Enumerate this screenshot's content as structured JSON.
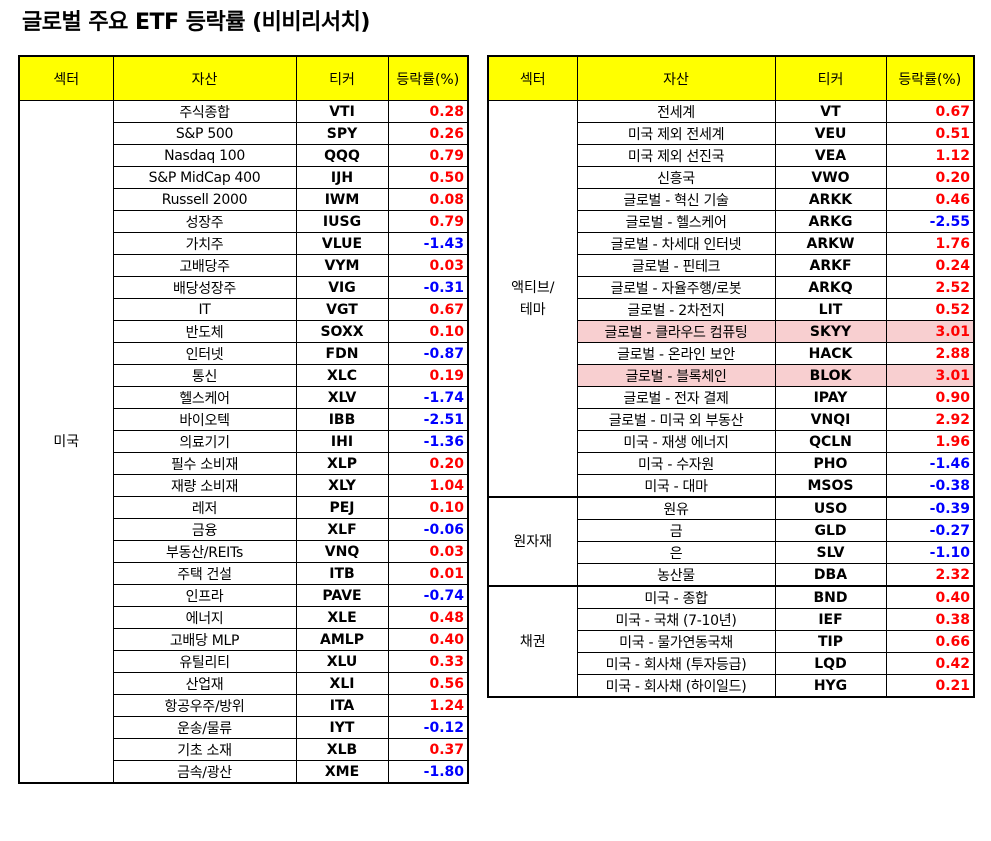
{
  "title": "글로벌 주요 ETF 등락률 (비비리서치)",
  "colors": {
    "header": "#ffff00",
    "positive": "#ff0000",
    "negative": "#0000ff",
    "highlight": "#f8cfd0"
  },
  "headers": {
    "sector": "섹터",
    "asset": "자산",
    "ticker": "티커",
    "change": "등락률(%)"
  },
  "left_table": {
    "groups": [
      {
        "sector": "미국",
        "rows": [
          {
            "asset": "주식종합",
            "ticker": "VTI",
            "change": "0.28"
          },
          {
            "asset": "S&P 500",
            "ticker": "SPY",
            "change": "0.26"
          },
          {
            "asset": "Nasdaq 100",
            "ticker": "QQQ",
            "change": "0.79"
          },
          {
            "asset": "S&P MidCap 400",
            "ticker": "IJH",
            "change": "0.50"
          },
          {
            "asset": "Russell 2000",
            "ticker": "IWM",
            "change": "0.08"
          },
          {
            "asset": "성장주",
            "ticker": "IUSG",
            "change": "0.79"
          },
          {
            "asset": "가치주",
            "ticker": "VLUE",
            "change": "-1.43"
          },
          {
            "asset": "고배당주",
            "ticker": "VYM",
            "change": "0.03"
          },
          {
            "asset": "배당성장주",
            "ticker": "VIG",
            "change": "-0.31"
          },
          {
            "asset": "IT",
            "ticker": "VGT",
            "change": "0.67"
          },
          {
            "asset": "반도체",
            "ticker": "SOXX",
            "change": "0.10"
          },
          {
            "asset": "인터넷",
            "ticker": "FDN",
            "change": "-0.87"
          },
          {
            "asset": "통신",
            "ticker": "XLC",
            "change": "0.19"
          },
          {
            "asset": "헬스케어",
            "ticker": "XLV",
            "change": "-1.74"
          },
          {
            "asset": "바이오텍",
            "ticker": "IBB",
            "change": "-2.51"
          },
          {
            "asset": "의료기기",
            "ticker": "IHI",
            "change": "-1.36"
          },
          {
            "asset": "필수 소비재",
            "ticker": "XLP",
            "change": "0.20"
          },
          {
            "asset": "재량 소비재",
            "ticker": "XLY",
            "change": "1.04"
          },
          {
            "asset": "레저",
            "ticker": "PEJ",
            "change": "0.10"
          },
          {
            "asset": "금융",
            "ticker": "XLF",
            "change": "-0.06"
          },
          {
            "asset": "부동산/REITs",
            "ticker": "VNQ",
            "change": "0.03"
          },
          {
            "asset": "주택 건설",
            "ticker": "ITB",
            "change": "0.01"
          },
          {
            "asset": "인프라",
            "ticker": "PAVE",
            "change": "-0.74"
          },
          {
            "asset": "에너지",
            "ticker": "XLE",
            "change": "0.48"
          },
          {
            "asset": "고배당 MLP",
            "ticker": "AMLP",
            "change": "0.40"
          },
          {
            "asset": "유틸리티",
            "ticker": "XLU",
            "change": "0.33"
          },
          {
            "asset": "산업재",
            "ticker": "XLI",
            "change": "0.56"
          },
          {
            "asset": "항공우주/방위",
            "ticker": "ITA",
            "change": "1.24"
          },
          {
            "asset": "운송/물류",
            "ticker": "IYT",
            "change": "-0.12"
          },
          {
            "asset": "기초 소재",
            "ticker": "XLB",
            "change": "0.37"
          },
          {
            "asset": "금속/광산",
            "ticker": "XME",
            "change": "-1.80"
          }
        ]
      }
    ]
  },
  "right_table": {
    "groups": [
      {
        "sector": "액티브/\n테마",
        "rows": [
          {
            "asset": "전세계",
            "ticker": "VT",
            "change": "0.67"
          },
          {
            "asset": "미국 제외 전세계",
            "ticker": "VEU",
            "change": "0.51"
          },
          {
            "asset": "미국 제외 선진국",
            "ticker": "VEA",
            "change": "1.12"
          },
          {
            "asset": "신흥국",
            "ticker": "VWO",
            "change": "0.20"
          },
          {
            "asset": "글로벌 - 혁신 기술",
            "ticker": "ARKK",
            "change": "0.46"
          },
          {
            "asset": "글로벌 - 헬스케어",
            "ticker": "ARKG",
            "change": "-2.55"
          },
          {
            "asset": "글로벌 - 차세대 인터넷",
            "ticker": "ARKW",
            "change": "1.76"
          },
          {
            "asset": "글로벌 - 핀테크",
            "ticker": "ARKF",
            "change": "0.24"
          },
          {
            "asset": "글로벌 - 자율주행/로봇",
            "ticker": "ARKQ",
            "change": "2.52"
          },
          {
            "asset": "글로벌 - 2차전지",
            "ticker": "LIT",
            "change": "0.52"
          },
          {
            "asset": "글로벌 - 클라우드 컴퓨팅",
            "ticker": "SKYY",
            "change": "3.01",
            "highlight": true
          },
          {
            "asset": "글로벌 - 온라인 보안",
            "ticker": "HACK",
            "change": "2.88"
          },
          {
            "asset": "글로벌 - 블록체인",
            "ticker": "BLOK",
            "change": "3.01",
            "highlight": true
          },
          {
            "asset": "글로벌 - 전자 결제",
            "ticker": "IPAY",
            "change": "0.90"
          },
          {
            "asset": "글로벌 - 미국 외 부동산",
            "ticker": "VNQI",
            "change": "2.92"
          },
          {
            "asset": "미국 - 재생 에너지",
            "ticker": "QCLN",
            "change": "1.96"
          },
          {
            "asset": "미국 - 수자원",
            "ticker": "PHO",
            "change": "-1.46"
          },
          {
            "asset": "미국 - 대마",
            "ticker": "MSOS",
            "change": "-0.38"
          }
        ]
      },
      {
        "sector": "원자재",
        "rows": [
          {
            "asset": "원유",
            "ticker": "USO",
            "change": "-0.39"
          },
          {
            "asset": "금",
            "ticker": "GLD",
            "change": "-0.27"
          },
          {
            "asset": "은",
            "ticker": "SLV",
            "change": "-1.10"
          },
          {
            "asset": "농산물",
            "ticker": "DBA",
            "change": "2.32"
          }
        ]
      },
      {
        "sector": "채권",
        "rows": [
          {
            "asset": "미국 - 종합",
            "ticker": "BND",
            "change": "0.40"
          },
          {
            "asset": "미국 - 국채 (7-10년)",
            "ticker": "IEF",
            "change": "0.38"
          },
          {
            "asset": "미국 - 물가연동국채",
            "ticker": "TIP",
            "change": "0.66"
          },
          {
            "asset": "미국 - 회사채 (투자등급)",
            "ticker": "LQD",
            "change": "0.42"
          },
          {
            "asset": "미국 - 회사채 (하이일드)",
            "ticker": "HYG",
            "change": "0.21"
          }
        ]
      }
    ]
  }
}
